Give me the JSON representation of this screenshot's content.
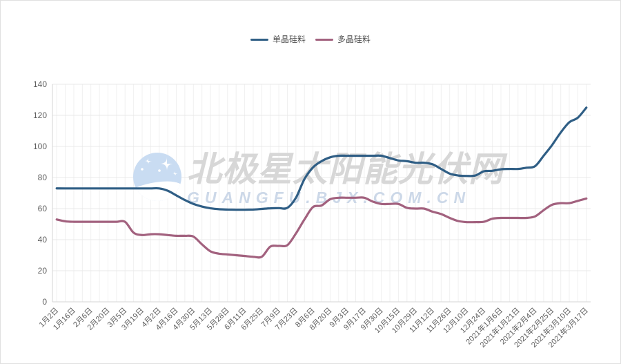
{
  "legend": {
    "items": [
      {
        "label": "单晶硅料",
        "color": "#2f5e85"
      },
      {
        "label": "多晶硅料",
        "color": "#a2617e"
      }
    ]
  },
  "watermark": {
    "cn": "北极星太阳能光伏网",
    "en": "GUANGFU.BJX.COM.CN",
    "logo_color": "#c9dcf2"
  },
  "chart_data": {
    "type": "line",
    "title": "",
    "xlabel": "",
    "ylabel": "",
    "smooth": true,
    "grid": true,
    "legend_position": "top",
    "ylim": [
      0,
      140
    ],
    "y_ticks": [
      0,
      20,
      40,
      60,
      80,
      100,
      120,
      140
    ],
    "label_every_nth_point": 2,
    "x_labels": [
      "1月2日",
      "1月16日",
      "2月6日",
      "2月20日",
      "3月5日",
      "3月19日",
      "4月2日",
      "4月16日",
      "4月30日",
      "5月13日",
      "5月28日",
      "6月11日",
      "6月25日",
      "7月9日",
      "7月23日",
      "8月6日",
      "8月20日",
      "9月3日",
      "9月17日",
      "9月30日",
      "10月15日",
      "10月29日",
      "11月12日",
      "11月26日",
      "12月10日",
      "12月24日",
      "2021年1月6日",
      "2021年1月21日",
      "2021年2月4日",
      "2021年2月25日",
      "2021年3月10日",
      "2021年3月17日"
    ],
    "series": [
      {
        "name": "单晶硅料",
        "color": "#2f5e85",
        "values": [
          73,
          73,
          73,
          73,
          73,
          73,
          73,
          73,
          73,
          73,
          73,
          73,
          73,
          71.5,
          68.5,
          65.5,
          63,
          61.3,
          60.2,
          59.6,
          59.4,
          59.3,
          59.3,
          59.4,
          59.8,
          60.2,
          60.3,
          60.5,
          67,
          79,
          86.5,
          90.5,
          93,
          94,
          94,
          94,
          94,
          94,
          94,
          92.5,
          91,
          90.5,
          89.5,
          89.5,
          88.5,
          85.5,
          82.5,
          81.3,
          81,
          81.3,
          84,
          84.3,
          85.3,
          85.5,
          85.5,
          86.3,
          87.3,
          94,
          101,
          109,
          115.5,
          118.5,
          125
        ]
      },
      {
        "name": "多晶硅料",
        "color": "#a2617e",
        "values": [
          53,
          51.8,
          51.5,
          51.5,
          51.5,
          51.5,
          51.5,
          51.5,
          51.5,
          44.5,
          43,
          43.5,
          43.5,
          43,
          42.5,
          42.5,
          42,
          37,
          32.5,
          31,
          30.5,
          30,
          29.5,
          29,
          29,
          35.5,
          36,
          36.5,
          44,
          53,
          61,
          62,
          66,
          67,
          67,
          67,
          67,
          64.5,
          63,
          63,
          63,
          60.5,
          60,
          60,
          58,
          56.5,
          54,
          52,
          51.3,
          51.3,
          51.5,
          53.5,
          54,
          54,
          54,
          54,
          55,
          59,
          62.5,
          63.5,
          63.5,
          65,
          66.5
        ]
      }
    ]
  }
}
